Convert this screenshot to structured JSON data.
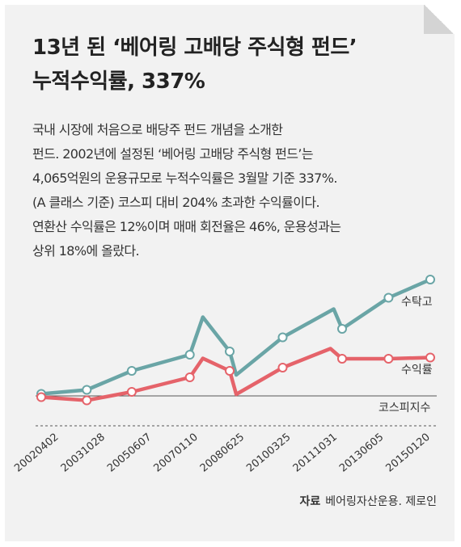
{
  "title": {
    "line1": "13년 된 ‘베어링 고배당 주식형 펀드’",
    "line2": "누적수익률, 337%"
  },
  "description": [
    "국내 시장에 처음으로 배당주 펀드 개념을 소개한",
    "펀드. 2002년에 설정된 ‘베어링 고배당 주식형 펀드’는",
    "4,065억원의 운용규모로 누적수익률은 3월말 기준 337%.",
    "(A 클래스 기준) 코스피 대비 204% 초과한 수익률이다.",
    "연환산 수익률은 12%이며 매매 회전율은 46%, 운용성과는",
    "상위 18%에 올랐다."
  ],
  "source": {
    "label": "자료",
    "text": "베어링자산운용. 제로인"
  },
  "colors": {
    "teal": "#6aa5a6",
    "red": "#e5636a",
    "axis": "#555555"
  },
  "chart_data": {
    "type": "line",
    "categories": [
      "20020402",
      "20031028",
      "20050607",
      "20070110",
      "20080625",
      "20100325",
      "20111031",
      "20130605",
      "20150120"
    ],
    "series": [
      {
        "name": "수탁고",
        "color": "#6aa5a6",
        "points": [
          [
            0,
            0.5
          ],
          [
            0.98,
            1.5
          ],
          [
            1.95,
            6.2
          ],
          [
            3.2,
            10.2
          ],
          [
            3.48,
            19.5
          ],
          [
            4.06,
            11.0
          ],
          [
            4.2,
            5.2
          ],
          [
            5.2,
            14.5
          ],
          [
            6.3,
            21.5
          ],
          [
            6.48,
            16.6
          ],
          [
            7.48,
            24.3
          ],
          [
            8.38,
            28.8
          ]
        ]
      },
      {
        "name": "수익률",
        "color": "#e5636a",
        "points": [
          [
            0,
            -0.3
          ],
          [
            0.98,
            -1.1
          ],
          [
            1.95,
            1.0
          ],
          [
            3.2,
            4.6
          ],
          [
            3.48,
            9.3
          ],
          [
            4.06,
            6.2
          ],
          [
            4.2,
            0.4
          ],
          [
            5.2,
            7.0
          ],
          [
            6.23,
            11.7
          ],
          [
            6.48,
            9.2
          ],
          [
            7.48,
            9.2
          ],
          [
            8.38,
            9.5
          ]
        ]
      }
    ],
    "baseline": {
      "name": "코스피지수",
      "value": 0
    },
    "marker_indices": [
      0,
      1,
      2,
      3,
      5,
      7,
      9,
      10,
      11
    ]
  }
}
